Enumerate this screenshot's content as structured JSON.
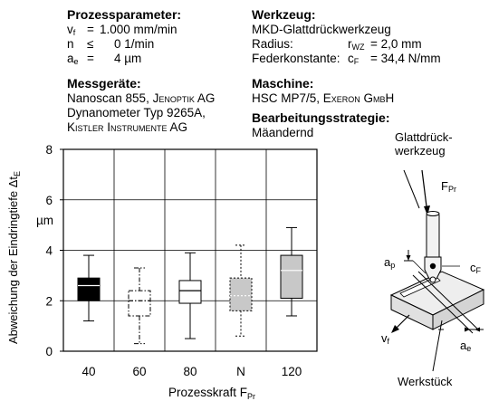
{
  "info": {
    "process_params": {
      "title": "Prozessparameter:",
      "rows": [
        {
          "sym": "v",
          "sub": "f",
          "rel": "=",
          "val": "1.000 mm/min"
        },
        {
          "sym": "n",
          "sub": "",
          "rel": "≤",
          "val": "0 1/min"
        },
        {
          "sym": "a",
          "sub": "e",
          "rel": "=",
          "val": "4 µm"
        }
      ]
    },
    "measuring_devices": {
      "title": "Messgeräte:",
      "line1_prefix": "Nanoscan 855, ",
      "line1_brand": "Jenoptik AG",
      "line2": "Dynanometer Typ 9265A,",
      "line3_brand": "Kistler Instrumente AG"
    },
    "tool": {
      "title": "Werkzeug:",
      "name": "MKD-Glattdrückwerkzeug",
      "radius_label": "Radius:",
      "radius_sym": "r",
      "radius_sub": "WZ",
      "radius_val": "=   2,0 mm",
      "spring_label": "Federkonstante:",
      "spring_sym": "c",
      "spring_sub": "F",
      "spring_val": "= 34,4 N/mm"
    },
    "machine": {
      "title": "Maschine:",
      "model": "HSC MP7/5, ",
      "brand": "Exeron GmbH"
    },
    "strategy": {
      "title": "Bearbeitungsstrategie:",
      "value": "Mäandernd"
    }
  },
  "chart_data": {
    "type": "boxplot",
    "xlabel": "Prozesskraft F",
    "xlabel_sub": "Pr",
    "ylabel": "Abweichung der Eindringtiefe Δt",
    "ylabel_sub": "E",
    "yunit": "µm",
    "ylim": [
      0,
      8
    ],
    "yticks": [
      0,
      2,
      4,
      6,
      8
    ],
    "grid": true,
    "categories": [
      "40",
      "60",
      "80",
      "N",
      "120"
    ],
    "boxes": [
      {
        "category": "40",
        "whisker_low": 1.2,
        "q1": 2.0,
        "median": 2.6,
        "q3": 2.9,
        "whisker_high": 3.8,
        "fill": "#000000",
        "style": "solid"
      },
      {
        "category": "60",
        "whisker_low": 0.3,
        "q1": 1.4,
        "median": 2.0,
        "q3": 2.4,
        "whisker_high": 3.3,
        "fill": "#ffffff",
        "style": "dashdot"
      },
      {
        "category": "80",
        "whisker_low": 0.5,
        "q1": 1.9,
        "median": 2.4,
        "q3": 2.8,
        "whisker_high": 3.9,
        "fill": "#ffffff",
        "style": "solid"
      },
      {
        "category": "N",
        "whisker_low": 0.6,
        "q1": 1.6,
        "median": 2.2,
        "q3": 2.9,
        "whisker_high": 4.2,
        "fill": "#c8c8c8",
        "style": "dotted"
      },
      {
        "category": "120",
        "whisker_low": 1.4,
        "q1": 2.1,
        "median": 3.2,
        "q3": 3.8,
        "whisker_high": 4.9,
        "fill": "#c8c8c8",
        "style": "solid"
      }
    ]
  },
  "diagram": {
    "tool_label_1": "Glattdrück-",
    "tool_label_2": "werkzeug",
    "force_sym": "F",
    "force_sub": "Pr",
    "ap_sym": "a",
    "ap_sub": "p",
    "cf_sym": "c",
    "cf_sub": "F",
    "vf_sym": "v",
    "vf_sub": "f",
    "ae_sym": "a",
    "ae_sub": "e",
    "workpiece_label": "Werkstück",
    "colors": {
      "tool_fill": "#f2f2f2",
      "workpiece_fill": "#eeeeee",
      "line": "#000000"
    }
  }
}
